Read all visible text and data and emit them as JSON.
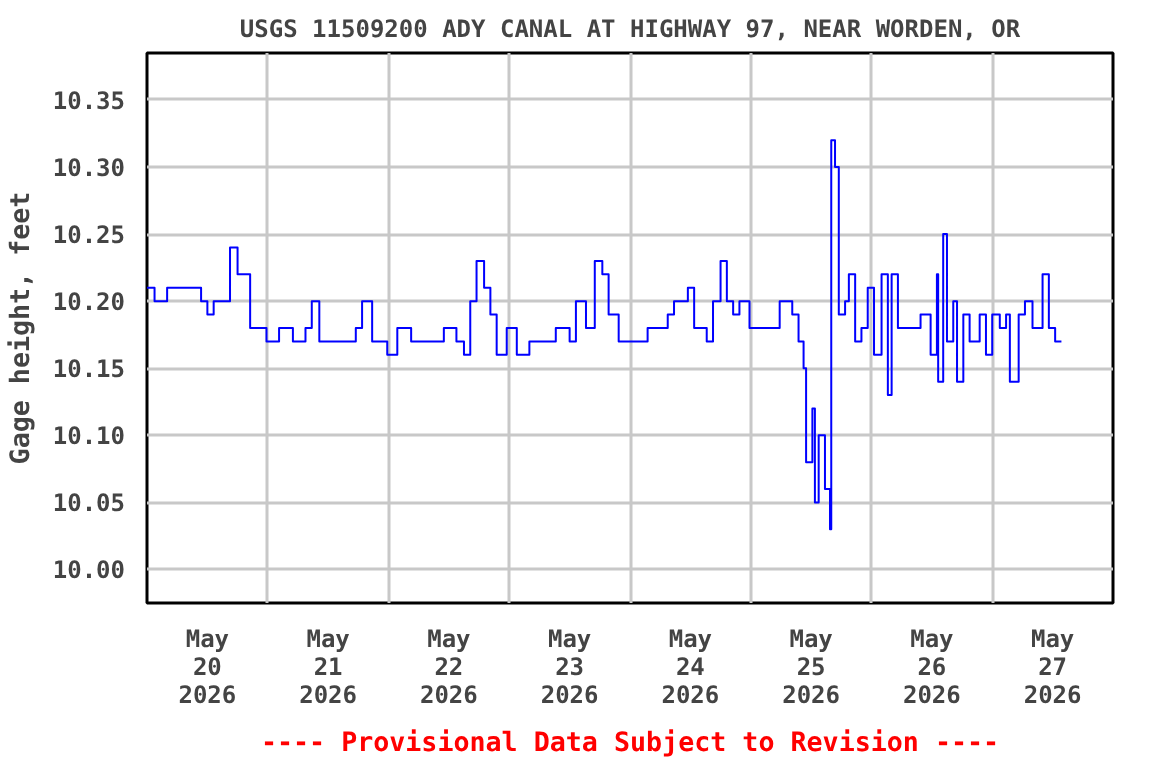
{
  "chart_data": {
    "type": "step",
    "title": "USGS 11509200 ADY CANAL AT HIGHWAY 97, NEAR WORDEN, OR",
    "ylabel": "Gage height, feet",
    "annotations": [
      "---- Provisional Data Subject to Revision ----"
    ],
    "xlim": [
      "2026-05-20T00:00",
      "2026-05-28T00:00"
    ],
    "xticks": [
      {
        "value": "2026-05-20T00:00",
        "label": null
      },
      {
        "value": "2026-05-20T12:00",
        "label": "May\n20\n2026"
      },
      {
        "value": "2026-05-21T00:00",
        "label": null
      },
      {
        "value": "2026-05-21T12:00",
        "label": "May\n21\n2026"
      },
      {
        "value": "2026-05-22T00:00",
        "label": null
      },
      {
        "value": "2026-05-22T12:00",
        "label": "May\n22\n2026"
      },
      {
        "value": "2026-05-23T00:00",
        "label": null
      },
      {
        "value": "2026-05-23T12:00",
        "label": "May\n23\n2026"
      },
      {
        "value": "2026-05-24T00:00",
        "label": null
      },
      {
        "value": "2026-05-24T12:00",
        "label": "May\n24\n2026"
      },
      {
        "value": "2026-05-25T00:00",
        "label": null
      },
      {
        "value": "2026-05-25T12:00",
        "label": "May\n25\n2026"
      },
      {
        "value": "2026-05-26T00:00",
        "label": null
      },
      {
        "value": "2026-05-26T12:00",
        "label": "May\n26\n2026"
      },
      {
        "value": "2026-05-27T00:00",
        "label": null
      },
      {
        "value": "2026-05-27T12:00",
        "label": "May\n27\n2026"
      },
      {
        "value": "2026-05-28T00:00",
        "label": null
      }
    ],
    "ylim": [
      9.975,
      10.385
    ],
    "yticks": [
      {
        "value": 10.0,
        "label": "10.00"
      },
      {
        "value": 10.05,
        "label": "10.05"
      },
      {
        "value": 10.1,
        "label": "10.10"
      },
      {
        "value": 10.15,
        "label": "10.15"
      },
      {
        "value": 10.2,
        "label": "10.20"
      },
      {
        "value": 10.25,
        "label": "10.25"
      },
      {
        "value": 10.3,
        "label": "10.30"
      },
      {
        "value": 10.35,
        "label": "10.35"
      }
    ],
    "grid": true,
    "series": [
      {
        "color": "#0000ff",
        "x": [
          "2026-05-20T00:00",
          "2026-05-20T01:30",
          "2026-05-20T04:00",
          "2026-05-20T06:00",
          "2026-05-20T10:45",
          "2026-05-20T12:00",
          "2026-05-20T13:15",
          "2026-05-20T14:00",
          "2026-05-20T16:00",
          "2026-05-20T16:30",
          "2026-05-20T18:00",
          "2026-05-20T19:15",
          "2026-05-20T20:30",
          "2026-05-20T22:30",
          "2026-05-20T23:45",
          "2026-05-21T02:15",
          "2026-05-21T05:00",
          "2026-05-21T07:30",
          "2026-05-21T08:45",
          "2026-05-21T10:15",
          "2026-05-21T12:45",
          "2026-05-21T15:30",
          "2026-05-21T17:30",
          "2026-05-21T18:45",
          "2026-05-21T20:45",
          "2026-05-21T23:45",
          "2026-05-22T01:45",
          "2026-05-22T04:30",
          "2026-05-22T08:30",
          "2026-05-22T11:00",
          "2026-05-22T13:30",
          "2026-05-22T15:00",
          "2026-05-22T16:15",
          "2026-05-22T17:30",
          "2026-05-22T19:00",
          "2026-05-22T20:15",
          "2026-05-22T21:30",
          "2026-05-22T23:30",
          "2026-05-23T01:30",
          "2026-05-23T04:00",
          "2026-05-23T09:15",
          "2026-05-23T12:00",
          "2026-05-23T13:15",
          "2026-05-23T15:15",
          "2026-05-23T17:00",
          "2026-05-23T18:30",
          "2026-05-23T19:45",
          "2026-05-23T21:45",
          "2026-05-23T23:30",
          "2026-05-24T03:30",
          "2026-05-24T07:30",
          "2026-05-24T08:45",
          "2026-05-24T11:30",
          "2026-05-24T12:45",
          "2026-05-24T15:15",
          "2026-05-24T16:30",
          "2026-05-24T18:00",
          "2026-05-24T19:15",
          "2026-05-24T20:30",
          "2026-05-24T21:45",
          "2026-05-24T23:45",
          "2026-05-25T03:00",
          "2026-05-25T05:45",
          "2026-05-25T08:15",
          "2026-05-25T09:30",
          "2026-05-25T10:30",
          "2026-05-25T11:00",
          "2026-05-25T12:15",
          "2026-05-25T12:45",
          "2026-05-25T13:30",
          "2026-05-25T14:45",
          "2026-05-25T15:45",
          "2026-05-25T16:00",
          "2026-05-25T16:45",
          "2026-05-25T17:30",
          "2026-05-25T18:45",
          "2026-05-25T19:30",
          "2026-05-25T20:45",
          "2026-05-25T22:00",
          "2026-05-25T23:15",
          "2026-05-26T00:30",
          "2026-05-26T02:00",
          "2026-05-26T03:15",
          "2026-05-26T04:00",
          "2026-05-26T05:15",
          "2026-05-26T07:45",
          "2026-05-26T09:45",
          "2026-05-26T11:45",
          "2026-05-26T13:00",
          "2026-05-26T13:15",
          "2026-05-26T14:15",
          "2026-05-26T15:00",
          "2026-05-26T16:15",
          "2026-05-26T17:00",
          "2026-05-26T18:15",
          "2026-05-26T19:30",
          "2026-05-26T21:30",
          "2026-05-26T22:45",
          "2026-05-27T00:00",
          "2026-05-27T01:30",
          "2026-05-27T02:45",
          "2026-05-27T03:30",
          "2026-05-27T05:15",
          "2026-05-27T06:30",
          "2026-05-27T08:00",
          "2026-05-27T10:00",
          "2026-05-27T11:15",
          "2026-05-27T12:30",
          "2026-05-27T13:45"
        ],
        "values": [
          10.21,
          10.2,
          10.21,
          10.21,
          10.2,
          10.19,
          10.2,
          10.2,
          10.2,
          10.24,
          10.22,
          10.22,
          10.18,
          10.18,
          10.17,
          10.18,
          10.17,
          10.18,
          10.2,
          10.17,
          10.17,
          10.17,
          10.18,
          10.2,
          10.17,
          10.16,
          10.18,
          10.17,
          10.17,
          10.18,
          10.17,
          10.16,
          10.2,
          10.23,
          10.21,
          10.19,
          10.16,
          10.18,
          10.16,
          10.17,
          10.18,
          10.17,
          10.2,
          10.18,
          10.23,
          10.22,
          10.19,
          10.17,
          10.17,
          10.18,
          10.19,
          10.2,
          10.21,
          10.18,
          10.17,
          10.2,
          10.23,
          10.2,
          10.19,
          10.2,
          10.18,
          10.18,
          10.2,
          10.19,
          10.17,
          10.15,
          10.08,
          10.12,
          10.05,
          10.1,
          10.06,
          10.03,
          10.32,
          10.3,
          10.19,
          10.2,
          10.22,
          10.17,
          10.18,
          10.21,
          10.16,
          10.22,
          10.13,
          10.22,
          10.18,
          10.18,
          10.19,
          10.16,
          10.22,
          10.14,
          10.25,
          10.17,
          10.2,
          10.14,
          10.19,
          10.17,
          10.19,
          10.16,
          10.19,
          10.18,
          10.19,
          10.14,
          10.19,
          10.2,
          10.18,
          10.22,
          10.18,
          10.17,
          10.17
        ]
      }
    ]
  }
}
